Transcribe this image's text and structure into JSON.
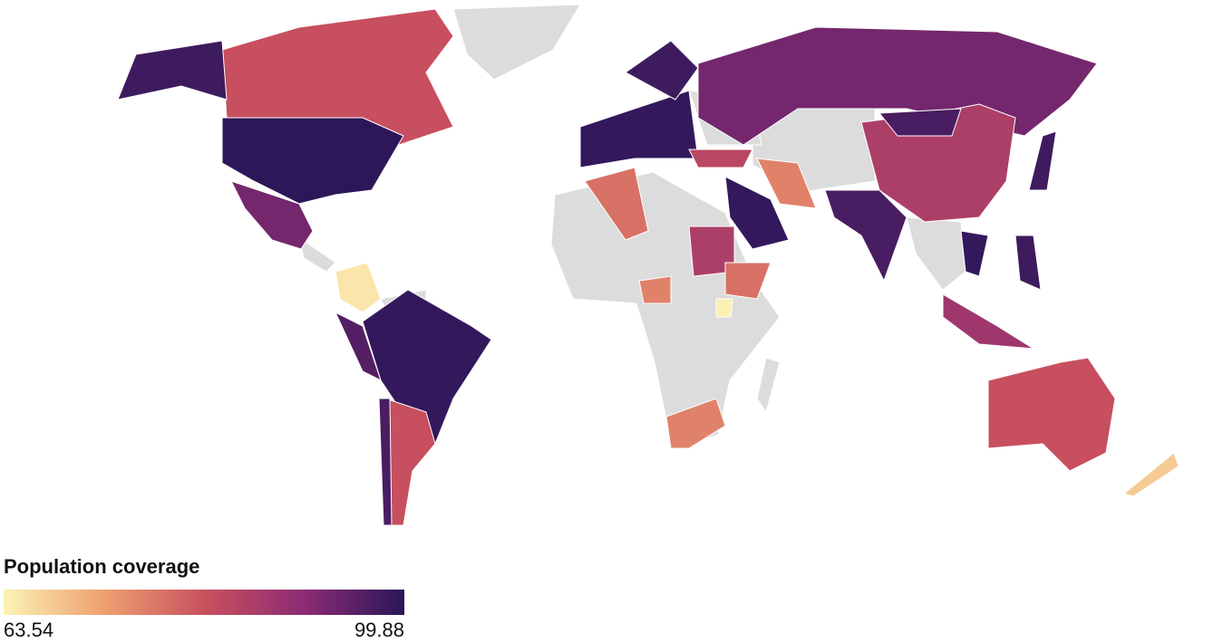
{
  "chart_data": {
    "type": "choropleth",
    "colorbar": {
      "title": "Population coverage",
      "ticks": [
        63.54,
        99.88
      ],
      "colorscale": [
        "#fcf3b6",
        "#eda06f",
        "#c9505e",
        "#8c2c74",
        "#2a1658"
      ]
    },
    "no_data_color": "#dcdcdc",
    "values": [
      82,
      98,
      99.5,
      93,
      99,
      82,
      65,
      96,
      97,
      78,
      99,
      98,
      93,
      86,
      97,
      97,
      76,
      99,
      86,
      78,
      76,
      82,
      88,
      98,
      84,
      68,
      64,
      76,
      99,
      98
    ]
  }
}
